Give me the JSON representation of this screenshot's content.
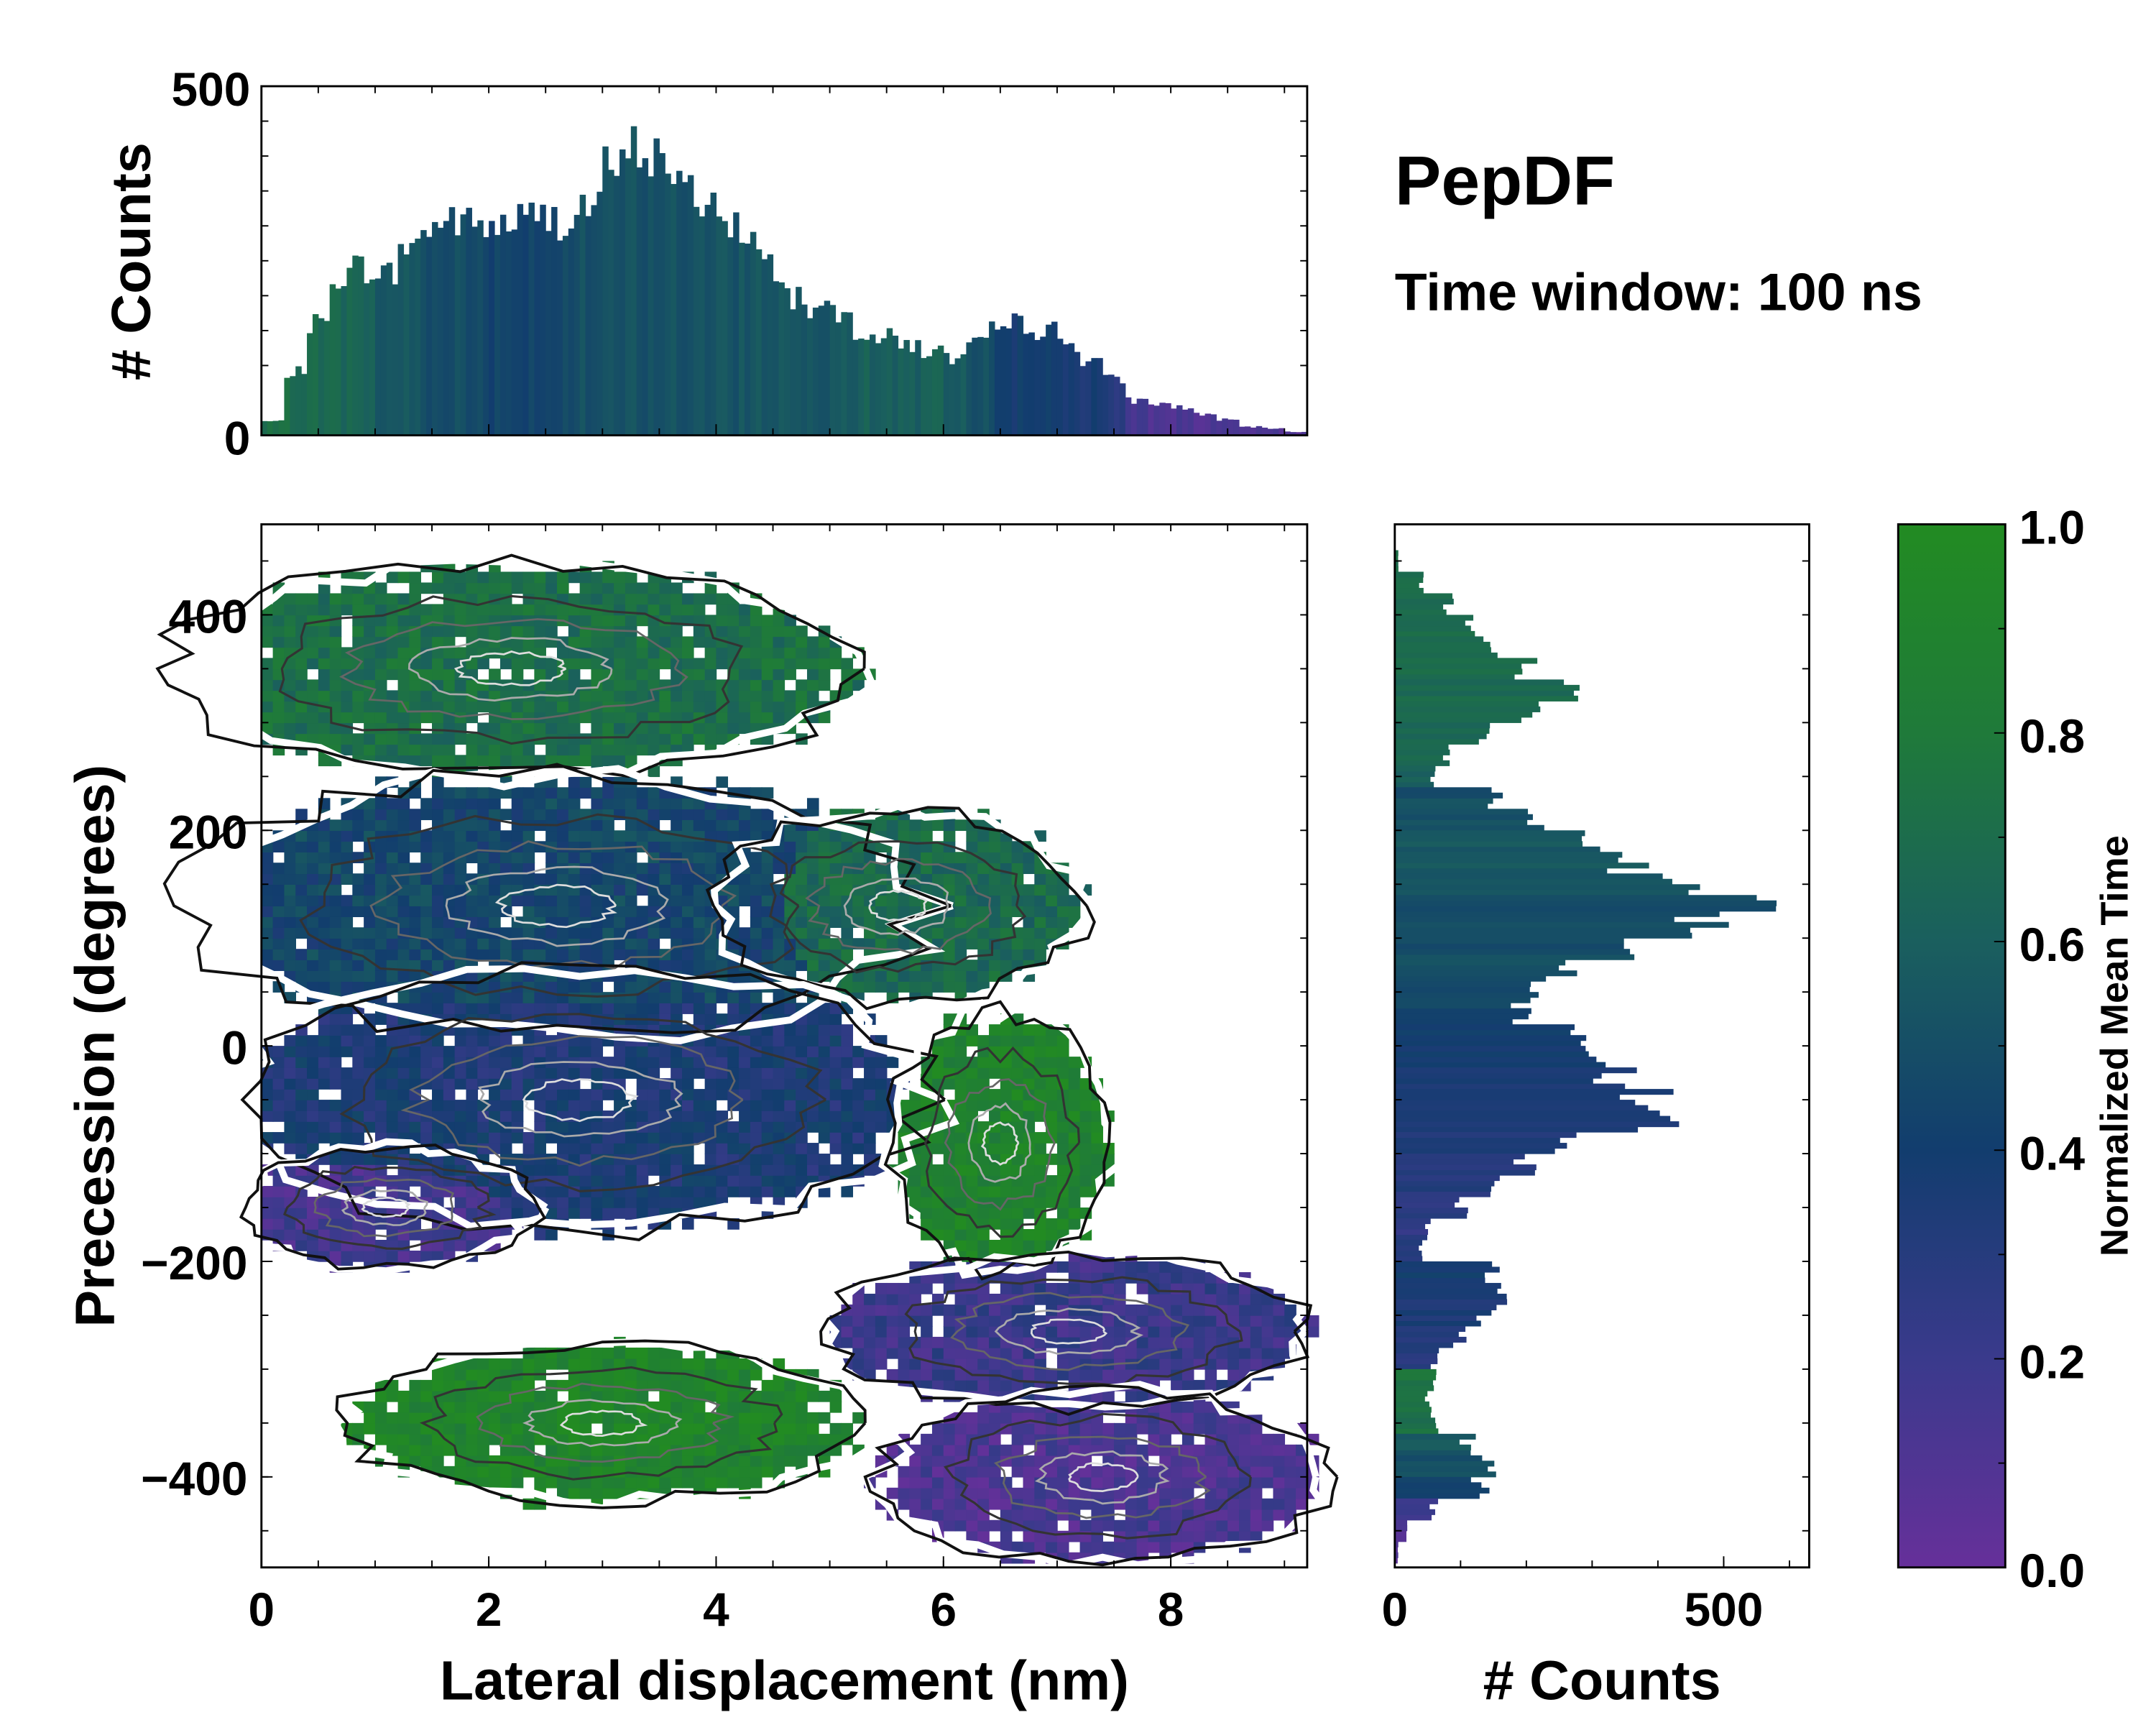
{
  "chart_data": [
    {
      "id": "top-histogram",
      "type": "bar",
      "ylabel": "# Counts",
      "xlim": [
        0,
        9.2
      ],
      "ylim": [
        0,
        500
      ],
      "ytick_labels": [
        "0",
        "500"
      ],
      "yticks": [
        0,
        500
      ],
      "bin_width": 0.2,
      "x": [
        0,
        0.2,
        0.4,
        0.6,
        0.8,
        1.0,
        1.2,
        1.4,
        1.6,
        1.8,
        2.0,
        2.2,
        2.4,
        2.6,
        2.8,
        3.0,
        3.2,
        3.4,
        3.6,
        3.8,
        4.0,
        4.2,
        4.4,
        4.6,
        4.8,
        5.0,
        5.2,
        5.4,
        5.6,
        5.8,
        6.0,
        6.2,
        6.4,
        6.6,
        6.8,
        7.0,
        7.2,
        7.4,
        7.6,
        7.8,
        8.0,
        8.2,
        8.4,
        8.6,
        8.8,
        9.0
      ],
      "values": [
        20,
        90,
        160,
        230,
        240,
        230,
        270,
        300,
        310,
        300,
        300,
        310,
        310,
        310,
        330,
        380,
        410,
        400,
        350,
        340,
        310,
        270,
        240,
        200,
        180,
        170,
        150,
        140,
        130,
        120,
        110,
        130,
        150,
        160,
        150,
        130,
        110,
        80,
        50,
        45,
        40,
        30,
        22,
        12,
        10,
        5
      ],
      "mean_time": [
        0.7,
        0.7,
        0.68,
        0.66,
        0.62,
        0.55,
        0.55,
        0.5,
        0.5,
        0.48,
        0.45,
        0.45,
        0.45,
        0.45,
        0.5,
        0.5,
        0.52,
        0.52,
        0.52,
        0.52,
        0.52,
        0.55,
        0.55,
        0.55,
        0.55,
        0.6,
        0.6,
        0.6,
        0.6,
        0.65,
        0.55,
        0.5,
        0.45,
        0.4,
        0.4,
        0.38,
        0.35,
        0.3,
        0.15,
        0.12,
        0.12,
        0.1,
        0.1,
        0.1,
        0.1,
        0.1
      ]
    },
    {
      "id": "main-heatmap",
      "type": "heatmap",
      "xlabel": "Lateral displacement (nm)",
      "ylabel": "Precession (degrees)",
      "xlim": [
        0,
        9.2
      ],
      "ylim": [
        -484,
        484
      ],
      "xticks": [
        0,
        2,
        4,
        6,
        8
      ],
      "xtick_labels": [
        "0",
        "2",
        "4",
        "6",
        "8"
      ],
      "yticks": [
        400,
        200,
        0,
        -200,
        -400
      ],
      "ytick_labels": [
        "400",
        "200",
        "0",
        "−200",
        "−400"
      ],
      "color_value": "Normalized Mean Time",
      "regions": [
        {
          "x": 2.2,
          "y": 350,
          "sx": 1.9,
          "sy": 60,
          "mean_time": 0.72
        },
        {
          "x": 2.6,
          "y": 130,
          "sx": 2.0,
          "sy": 75,
          "mean_time": 0.45
        },
        {
          "x": 5.6,
          "y": 130,
          "sx": 1.0,
          "sy": 55,
          "mean_time": 0.68
        },
        {
          "x": 2.8,
          "y": -50,
          "sx": 1.9,
          "sy": 75,
          "mean_time": 0.35
        },
        {
          "x": 1.1,
          "y": -150,
          "sx": 0.8,
          "sy": 35,
          "mean_time": 0.15
        },
        {
          "x": 6.5,
          "y": -90,
          "sx": 0.6,
          "sy": 75,
          "mean_time": 0.9
        },
        {
          "x": 7.1,
          "y": -265,
          "sx": 1.3,
          "sy": 45,
          "mean_time": 0.2
        },
        {
          "x": 3.0,
          "y": -350,
          "sx": 1.4,
          "sy": 45,
          "mean_time": 0.92
        },
        {
          "x": 7.4,
          "y": -400,
          "sx": 1.2,
          "sy": 50,
          "mean_time": 0.12
        }
      ]
    },
    {
      "id": "right-histogram",
      "type": "bar",
      "orientation": "horizontal",
      "xlabel": "# Counts",
      "xlim": [
        0,
        630
      ],
      "xticks": [
        0,
        500
      ],
      "xtick_labels": [
        "0",
        "500"
      ],
      "bin_width": 20,
      "y": [
        440,
        420,
        400,
        380,
        360,
        340,
        320,
        300,
        280,
        260,
        240,
        220,
        200,
        180,
        160,
        140,
        120,
        100,
        80,
        60,
        40,
        20,
        0,
        -20,
        -40,
        -60,
        -80,
        -100,
        -120,
        -140,
        -160,
        -180,
        -200,
        -220,
        -240,
        -260,
        -280,
        -300,
        -320,
        -340,
        -360,
        -380,
        -400,
        -420,
        -440,
        -460,
        -480
      ],
      "values": [
        5,
        40,
        80,
        120,
        140,
        200,
        260,
        200,
        130,
        80,
        60,
        150,
        210,
        280,
        350,
        420,
        520,
        460,
        330,
        260,
        220,
        200,
        260,
        320,
        330,
        380,
        400,
        260,
        200,
        150,
        100,
        50,
        40,
        150,
        160,
        140,
        100,
        60,
        60,
        50,
        60,
        110,
        150,
        130,
        60,
        20,
        5
      ],
      "mean_time": [
        0.72,
        0.72,
        0.7,
        0.7,
        0.7,
        0.7,
        0.68,
        0.68,
        0.66,
        0.66,
        0.6,
        0.5,
        0.52,
        0.55,
        0.55,
        0.55,
        0.5,
        0.5,
        0.5,
        0.5,
        0.45,
        0.45,
        0.4,
        0.38,
        0.36,
        0.35,
        0.35,
        0.33,
        0.3,
        0.3,
        0.28,
        0.25,
        0.3,
        0.4,
        0.35,
        0.35,
        0.3,
        0.3,
        0.75,
        0.75,
        0.72,
        0.55,
        0.5,
        0.4,
        0.2,
        0.1,
        0.08
      ]
    },
    {
      "id": "colorbar",
      "type": "colorbar",
      "label": "Normalized Mean Time",
      "range": [
        0,
        1
      ],
      "tick_labels": [
        "0.0",
        "0.2",
        "0.4",
        "0.6",
        "0.8",
        "1.0"
      ],
      "ticks": [
        0,
        0.2,
        0.4,
        0.6,
        0.8,
        1.0
      ],
      "colormap": [
        "#66309a",
        "#3a3a8c",
        "#123d6e",
        "#1a5f5e",
        "#1f7a3a",
        "#228b22"
      ]
    }
  ],
  "title": "PepDF",
  "subtitle": "Time window: 100 ns",
  "labels": {
    "top_ylabel": "# Counts",
    "main_xlabel": "Lateral displacement (nm)",
    "main_ylabel": "Precession (degrees)",
    "right_xlabel": "# Counts",
    "colorbar_label": "Normalized Mean Time"
  }
}
